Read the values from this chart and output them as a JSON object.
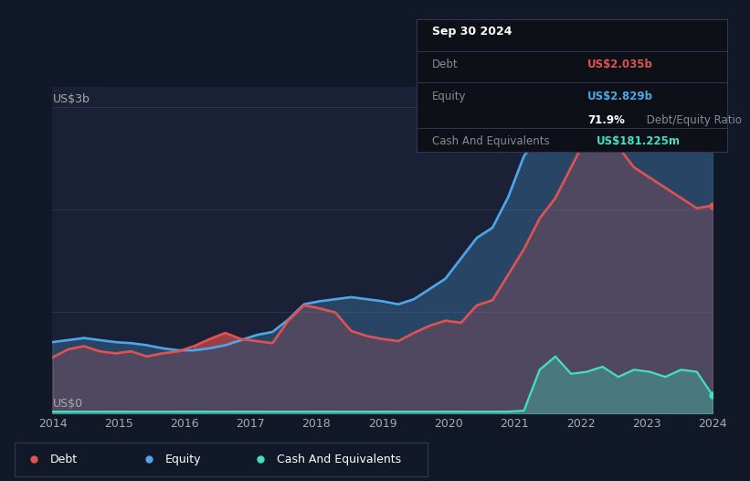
{
  "bg_color": "#111827",
  "plot_bg_color": "#1a2035",
  "tooltip_bg_color": "#0d1117",
  "grid_color": "#2a3347",
  "debt_color": "#e05252",
  "equity_color": "#4da6e8",
  "cash_color": "#40e0c0",
  "ylabel_top": "US$3b",
  "ylabel_bot": "US$0",
  "xlabel_ticks": [
    "2014",
    "2015",
    "2016",
    "2017",
    "2018",
    "2019",
    "2020",
    "2021",
    "2022",
    "2023",
    "2024"
  ],
  "tooltip_date": "Sep 30 2024",
  "tooltip_debt_label": "Debt",
  "tooltip_debt_val": "US$2.035b",
  "tooltip_equity_label": "Equity",
  "tooltip_equity_val": "US$2.829b",
  "tooltip_ratio": "71.9%",
  "tooltip_ratio_label": " Debt/Equity Ratio",
  "tooltip_cash_label": "Cash And Equivalents",
  "tooltip_cash_val": "US$181.225m",
  "legend": [
    "Debt",
    "Equity",
    "Cash And Equivalents"
  ],
  "debt_values": [
    0.55,
    0.63,
    0.66,
    0.61,
    0.59,
    0.61,
    0.56,
    0.59,
    0.61,
    0.66,
    0.73,
    0.79,
    0.73,
    0.71,
    0.69,
    0.91,
    1.06,
    1.03,
    0.99,
    0.81,
    0.76,
    0.73,
    0.71,
    0.79,
    0.86,
    0.91,
    0.89,
    1.06,
    1.11,
    1.36,
    1.61,
    1.91,
    2.11,
    2.41,
    2.71,
    2.81,
    2.61,
    2.41,
    2.31,
    2.21,
    2.11,
    2.01,
    2.035
  ],
  "equity_values": [
    0.7,
    0.72,
    0.74,
    0.72,
    0.7,
    0.69,
    0.67,
    0.64,
    0.62,
    0.62,
    0.64,
    0.67,
    0.72,
    0.77,
    0.8,
    0.92,
    1.07,
    1.1,
    1.12,
    1.14,
    1.12,
    1.1,
    1.07,
    1.12,
    1.22,
    1.32,
    1.52,
    1.72,
    1.82,
    2.12,
    2.52,
    2.72,
    2.82,
    2.87,
    2.92,
    2.97,
    2.87,
    2.77,
    2.72,
    2.77,
    2.82,
    2.84,
    2.829
  ],
  "cash_values": [
    0.02,
    0.02,
    0.02,
    0.02,
    0.02,
    0.02,
    0.02,
    0.02,
    0.02,
    0.02,
    0.02,
    0.02,
    0.02,
    0.02,
    0.02,
    0.02,
    0.02,
    0.02,
    0.02,
    0.02,
    0.02,
    0.02,
    0.02,
    0.02,
    0.02,
    0.02,
    0.02,
    0.02,
    0.02,
    0.02,
    0.03,
    0.43,
    0.56,
    0.39,
    0.41,
    0.46,
    0.36,
    0.43,
    0.41,
    0.36,
    0.43,
    0.41,
    0.181
  ],
  "ymax": 3.2,
  "n_points": 43
}
